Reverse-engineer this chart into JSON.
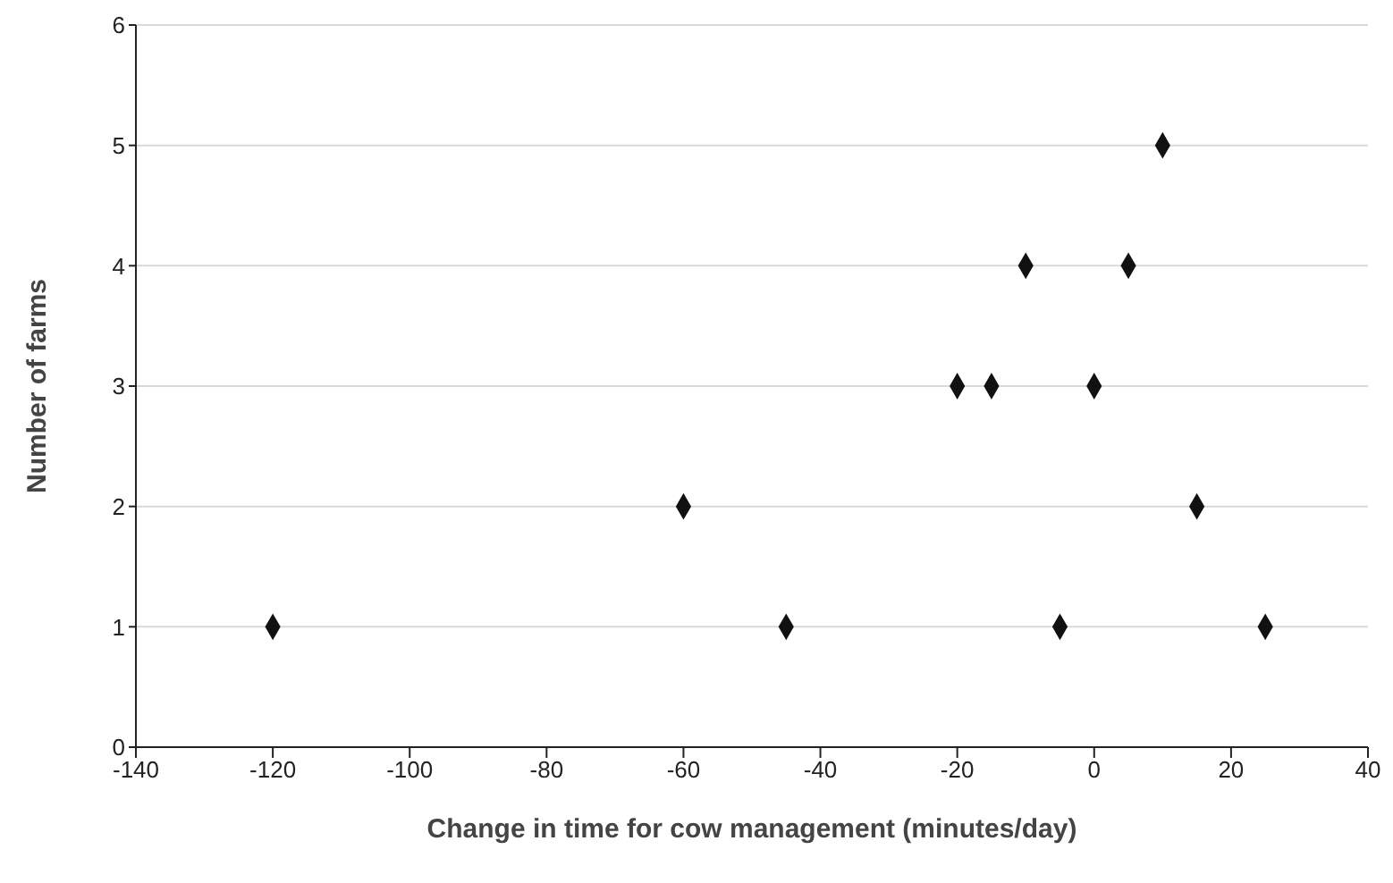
{
  "chart_data": {
    "type": "scatter",
    "xlabel": "Change in time for cow management (minutes/day)",
    "ylabel": "Number of farms",
    "x": [
      -120,
      -60,
      -45,
      -20,
      -15,
      -10,
      -5,
      0,
      5,
      10,
      15,
      25
    ],
    "values": [
      1,
      2,
      1,
      3,
      3,
      4,
      1,
      3,
      4,
      5,
      2,
      1
    ],
    "color": "#111111",
    "marker": "diamond",
    "xlim": [
      -140,
      40
    ],
    "xticks": [
      -140,
      -120,
      -100,
      -80,
      -60,
      -40,
      -20,
      0,
      20,
      40
    ],
    "ylim": [
      0,
      6
    ],
    "yticks": [
      0,
      1,
      2,
      3,
      4,
      5,
      6
    ],
    "grid": "y",
    "legend": false
  }
}
